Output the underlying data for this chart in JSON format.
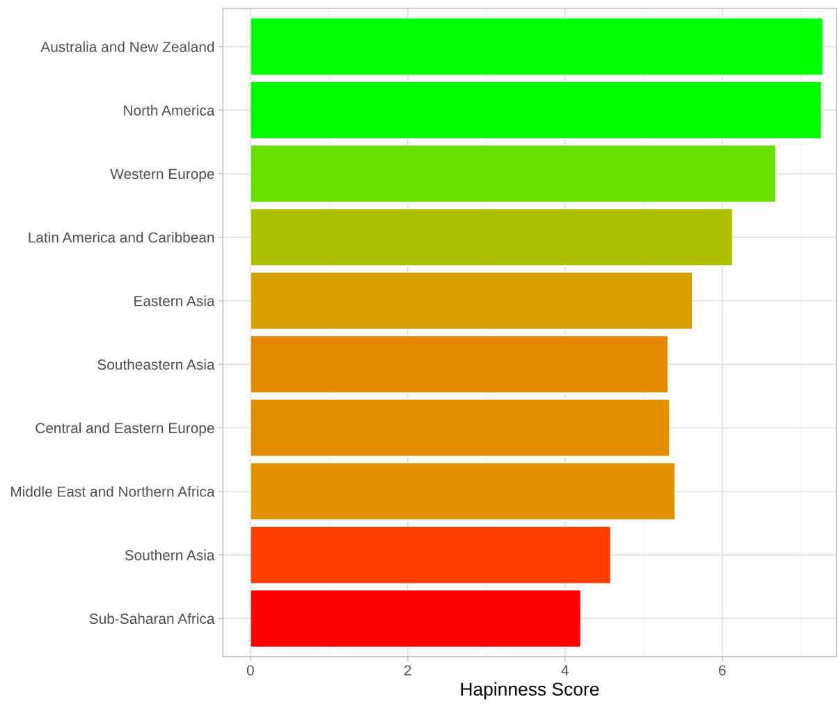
{
  "chart_data": {
    "type": "bar",
    "orientation": "horizontal",
    "xlabel": "Hapinness Score",
    "categories": [
      "Australia and New Zealand",
      "North America",
      "Western Europe",
      "Latin America and Caribbean",
      "Eastern Asia",
      "Southeastern Asia",
      "Central and Eastern Europe",
      "Middle East and Northern Africa",
      "Southern Asia",
      "Sub-Saharan Africa"
    ],
    "values": [
      7.28,
      7.26,
      6.68,
      6.13,
      5.62,
      5.31,
      5.33,
      5.4,
      4.58,
      4.2
    ],
    "colors": [
      "#00ff00",
      "#00fa00",
      "#68e000",
      "#adc000",
      "#d8a000",
      "#e38900",
      "#e39000",
      "#e39200",
      "#ff3e00",
      "#ff0000"
    ],
    "xlim": [
      -0.35,
      7.45
    ],
    "xticks": [
      0,
      2,
      4,
      6
    ],
    "grid": true
  }
}
